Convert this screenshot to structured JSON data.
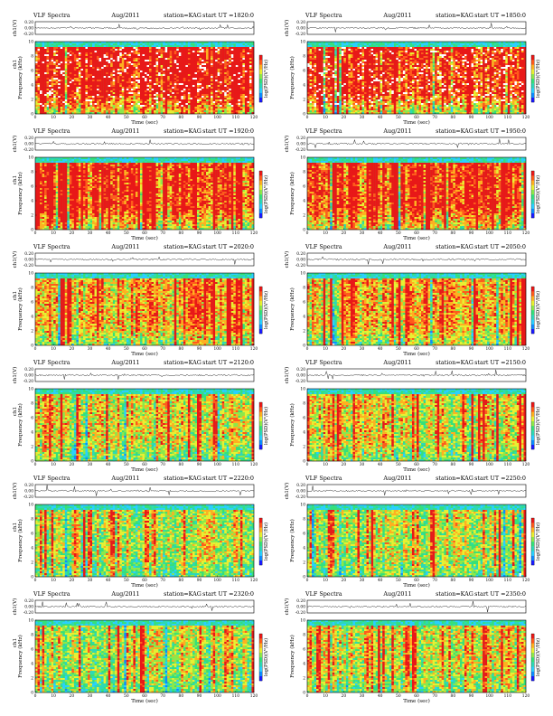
{
  "palette": [
    "#1a1aff",
    "#0c8cff",
    "#2ad0ff",
    "#2ed8b6",
    "#35e07a",
    "#8ee84a",
    "#e8f032",
    "#ffb020",
    "#ff5b1c",
    "#e81818"
  ],
  "chart_data": [
    {
      "type": "heatmap",
      "col": 0,
      "row": 0,
      "title": "VLF Spectra",
      "date": "Aug/2011",
      "station": "station=KAG",
      "start": "start  UT  =1820:0",
      "amp_label": "ch1(V)",
      "amp_ticks": [
        "0.20",
        "0.00",
        "-0.20"
      ],
      "ylabel_top": "ch1",
      "ylabel": "Frequency  (kHz)",
      "xlabel": "Time  (sec)",
      "cb_label": "log(PSD)(V²/Hz)",
      "xlim": [
        0,
        120
      ],
      "ylim": [
        0,
        10
      ],
      "x_ticks": [
        "0",
        "10",
        "20",
        "30",
        "40",
        "50",
        "60",
        "70",
        "80",
        "90",
        "100",
        "110",
        "120"
      ],
      "y_ticks": [
        "0",
        "2",
        "4",
        "6",
        "8",
        "10"
      ],
      "intensity": 0.92,
      "seed": 11
    },
    {
      "type": "heatmap",
      "col": 1,
      "row": 0,
      "title": "VLF Spectra",
      "date": "Aug/2011",
      "station": "station=KAG",
      "start": "start  UT  =1850:0",
      "amp_label": "ch1(V)",
      "amp_ticks": [
        "0.20",
        "0.00",
        "-0.20"
      ],
      "ylabel_top": "",
      "ylabel": "Frequency  (kHz)",
      "xlabel": "Time  (sec)",
      "cb_label": "log(PSD)(V²/Hz)",
      "xlim": [
        0,
        120
      ],
      "ylim": [
        0,
        10
      ],
      "x_ticks": [
        "0",
        "10",
        "20",
        "30",
        "40",
        "50",
        "60",
        "70",
        "80",
        "90",
        "100",
        "110",
        "120"
      ],
      "y_ticks": [
        "0",
        "2",
        "4",
        "6",
        "8",
        "10"
      ],
      "intensity": 0.9,
      "seed": 23
    },
    {
      "type": "heatmap",
      "col": 0,
      "row": 1,
      "title": "VLF Spectra",
      "date": "Aug/2011",
      "station": "station=KAG",
      "start": "start  UT  =1920:0",
      "amp_label": "ch1(V)",
      "amp_ticks": [
        "0.20",
        "0.00",
        "-0.20"
      ],
      "ylabel_top": "ch1",
      "ylabel": "Frequency  (kHz)",
      "xlabel": "Time  (sec)",
      "cb_label": "log(PSD)(V²/Hz)",
      "xlim": [
        0,
        120
      ],
      "ylim": [
        0,
        10
      ],
      "x_ticks": [
        "0",
        "10",
        "20",
        "30",
        "40",
        "50",
        "60",
        "70",
        "80",
        "90",
        "100",
        "110",
        "120"
      ],
      "y_ticks": [
        "0",
        "2",
        "4",
        "6",
        "8",
        "10"
      ],
      "intensity": 0.8,
      "seed": 37
    },
    {
      "type": "heatmap",
      "col": 1,
      "row": 1,
      "title": "VLF Spectra",
      "date": "Aug/2011",
      "station": "station=KAG",
      "start": "start  UT  =1950:0",
      "amp_label": "ch1(V)",
      "amp_ticks": [
        "0.20",
        "0.00",
        "-0.20"
      ],
      "ylabel_top": "",
      "ylabel": "Frequency  (kHz)",
      "xlabel": "Time  (sec)",
      "cb_label": "log(PSD)(V²/Hz)",
      "xlim": [
        0,
        120
      ],
      "ylim": [
        0,
        10
      ],
      "x_ticks": [
        "0",
        "10",
        "20",
        "30",
        "40",
        "50",
        "60",
        "70",
        "80",
        "90",
        "100",
        "110",
        "120"
      ],
      "y_ticks": [
        "0",
        "2",
        "4",
        "6",
        "8",
        "10"
      ],
      "intensity": 0.76,
      "seed": 41
    },
    {
      "type": "heatmap",
      "col": 0,
      "row": 2,
      "title": "VLF Spectra",
      "date": "Aug/2011",
      "station": "station=KAG",
      "start": "start  UT  =2020:0",
      "amp_label": "ch1(V)",
      "amp_ticks": [
        "0.20",
        "0.00",
        "-0.20"
      ],
      "ylabel_top": "ch1",
      "ylabel": "Frequency  (kHz)",
      "xlabel": "Time  (sec)",
      "cb_label": "log(PSD)(V²/Hz)",
      "xlim": [
        0,
        120
      ],
      "ylim": [
        0,
        10
      ],
      "x_ticks": [
        "0",
        "10",
        "20",
        "30",
        "40",
        "50",
        "60",
        "70",
        "80",
        "90",
        "100",
        "110",
        "120"
      ],
      "y_ticks": [
        "0",
        "2",
        "4",
        "6",
        "8",
        "10"
      ],
      "intensity": 0.62,
      "seed": 53
    },
    {
      "type": "heatmap",
      "col": 1,
      "row": 2,
      "title": "VLF Spectra",
      "date": "Aug/2011",
      "station": "station=KAG",
      "start": "start  UT  =2050:0",
      "amp_label": "ch1(V)",
      "amp_ticks": [
        "0.20",
        "0.00",
        "-0.20"
      ],
      "ylabel_top": "",
      "ylabel": "Frequency  (kHz)",
      "xlabel": "Time  (sec)",
      "cb_label": "log(PSD)(V²/Hz)",
      "xlim": [
        0,
        120
      ],
      "ylim": [
        0,
        10
      ],
      "x_ticks": [
        "0",
        "10",
        "20",
        "30",
        "40",
        "50",
        "60",
        "70",
        "80",
        "90",
        "100",
        "110",
        "120"
      ],
      "y_ticks": [
        "0",
        "2",
        "4",
        "6",
        "8",
        "10"
      ],
      "intensity": 0.55,
      "seed": 67
    },
    {
      "type": "heatmap",
      "col": 0,
      "row": 3,
      "title": "VLF Spectra",
      "date": "Aug/2011",
      "station": "station=KAG",
      "start": "start  UT  =2120:0",
      "amp_label": "ch1(V)",
      "amp_ticks": [
        "0.20",
        "0.00",
        "-0.20"
      ],
      "ylabel_top": "ch1",
      "ylabel": "Frequency  (kHz)",
      "xlabel": "Time  (sec)",
      "cb_label": "log(PSD)(V²/Hz)",
      "xlim": [
        0,
        120
      ],
      "ylim": [
        0,
        10
      ],
      "x_ticks": [
        "0",
        "10",
        "20",
        "30",
        "40",
        "50",
        "60",
        "70",
        "80",
        "90",
        "100",
        "110",
        "120"
      ],
      "y_ticks": [
        "0",
        "2",
        "4",
        "6",
        "8",
        "10"
      ],
      "intensity": 0.46,
      "seed": 71
    },
    {
      "type": "heatmap",
      "col": 1,
      "row": 3,
      "title": "VLF Spectra",
      "date": "Aug/2011",
      "station": "station=KAG",
      "start": "start  UT  =2150:0",
      "amp_label": "ch1(V)",
      "amp_ticks": [
        "0.20",
        "0.00",
        "-0.20"
      ],
      "ylabel_top": "",
      "ylabel": "Frequency  (kHz)",
      "xlabel": "Time  (sec)",
      "cb_label": "log(PSD)(V²/Hz)",
      "xlim": [
        0,
        120
      ],
      "ylim": [
        0,
        10
      ],
      "x_ticks": [
        "0",
        "10",
        "20",
        "30",
        "40",
        "50",
        "60",
        "70",
        "80",
        "90",
        "100",
        "110",
        "120"
      ],
      "y_ticks": [
        "0",
        "2",
        "4",
        "6",
        "8",
        "10"
      ],
      "intensity": 0.44,
      "seed": 83
    },
    {
      "type": "heatmap",
      "col": 0,
      "row": 4,
      "title": "VLF Spectra",
      "date": "Aug/2011",
      "station": "station=KAG",
      "start": "start  UT  =2220:0",
      "amp_label": "ch1(V)",
      "amp_ticks": [
        "0.20",
        "0.00",
        "-0.20"
      ],
      "ylabel_top": "ch1",
      "ylabel": "Frequency  (kHz)",
      "xlabel": "Time  (sec)",
      "cb_label": "log(PSD)(V²/Hz)",
      "xlim": [
        0,
        120
      ],
      "ylim": [
        0,
        10
      ],
      "x_ticks": [
        "0",
        "10",
        "20",
        "30",
        "40",
        "50",
        "60",
        "70",
        "80",
        "90",
        "100",
        "110",
        "120"
      ],
      "y_ticks": [
        "0",
        "2",
        "4",
        "6",
        "8",
        "10"
      ],
      "intensity": 0.36,
      "seed": 97
    },
    {
      "type": "heatmap",
      "col": 1,
      "row": 4,
      "title": "VLF Spectra",
      "date": "Aug/2011",
      "station": "station=KAG",
      "start": "start  UT  =2250:0",
      "amp_label": "ch1(V)",
      "amp_ticks": [
        "0.20",
        "0.00",
        "-0.20"
      ],
      "ylabel_top": "",
      "ylabel": "Frequency  (kHz)",
      "xlabel": "Time  (sec)",
      "cb_label": "log(PSD)(V²/Hz)",
      "xlim": [
        0,
        120
      ],
      "ylim": [
        0,
        10
      ],
      "x_ticks": [
        "0",
        "10",
        "20",
        "30",
        "40",
        "50",
        "60",
        "70",
        "80",
        "90",
        "100",
        "110",
        "120"
      ],
      "y_ticks": [
        "0",
        "2",
        "4",
        "6",
        "8",
        "10"
      ],
      "intensity": 0.36,
      "seed": 101
    },
    {
      "type": "heatmap",
      "col": 0,
      "row": 5,
      "title": "VLF Spectra",
      "date": "Aug/2011",
      "station": "station=KAG",
      "start": "start  UT  =2320:0",
      "amp_label": "ch1(V)",
      "amp_ticks": [
        "0.20",
        "0.00",
        "-0.20"
      ],
      "ylabel_top": "ch1",
      "ylabel": "Frequency  (kHz)",
      "xlabel": "Time  (sec)",
      "cb_label": "log(PSD)(V²/Hz)",
      "xlim": [
        0,
        120
      ],
      "ylim": [
        0,
        10
      ],
      "x_ticks": [
        "0",
        "10",
        "20",
        "30",
        "40",
        "50",
        "60",
        "70",
        "80",
        "90",
        "100",
        "110",
        "120"
      ],
      "y_ticks": [
        "0",
        "2",
        "4",
        "6",
        "8",
        "10"
      ],
      "intensity": 0.34,
      "seed": 113
    },
    {
      "type": "heatmap",
      "col": 1,
      "row": 5,
      "title": "VLF Spectra",
      "date": "Aug/2011",
      "station": "station=KAG",
      "start": "start  UT  =2350:0",
      "amp_label": "ch1(V)",
      "amp_ticks": [
        "0.20",
        "0.00",
        "-0.20"
      ],
      "ylabel_top": "",
      "ylabel": "Frequency  (kHz)",
      "xlabel": "Time  (sec)",
      "cb_label": "log(PSD)(V²/Hz)",
      "xlim": [
        0,
        120
      ],
      "ylim": [
        0,
        10
      ],
      "x_ticks": [
        "0",
        "10",
        "20",
        "30",
        "40",
        "50",
        "60",
        "70",
        "80",
        "90",
        "100",
        "110",
        "120"
      ],
      "y_ticks": [
        "0",
        "2",
        "4",
        "6",
        "8",
        "10"
      ],
      "intensity": 0.4,
      "seed": 127
    }
  ]
}
